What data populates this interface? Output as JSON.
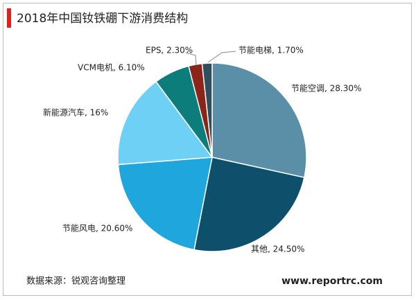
{
  "chart_data": {
    "type": "pie",
    "title": "2018年中国钕铁硼下游消费结构",
    "labels": [
      "节能空调, 28.30%",
      "其他, 24.50%",
      "节能风电, 20.60%",
      "新能源汽车, 16%",
      "VCM电机, 6.10%",
      "EPS, 2.30%",
      "节能电梯, 1.70%"
    ],
    "values": [
      28.3,
      24.5,
      20.6,
      16,
      6.1,
      2.3,
      1.7
    ],
    "colors": [
      "#5b8fa8",
      "#0e4f6b",
      "#1fa6dc",
      "#6fd0f5",
      "#0c7d7a",
      "#8b2419",
      "#2f4f5f"
    ],
    "source": "数据来源：锐观咨询整理",
    "website": "www.reportrc.com"
  }
}
